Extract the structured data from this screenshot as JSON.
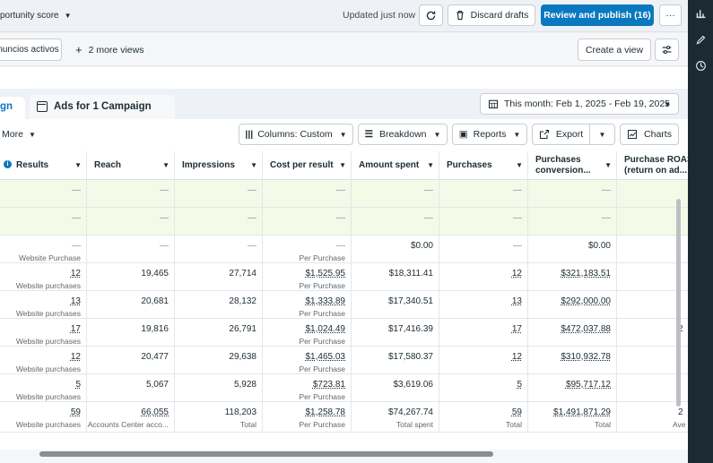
{
  "topbar": {
    "opportunity_label": "portunity score",
    "updated_text": "Updated just now",
    "discard_label": "Discard drafts",
    "publish_label": "Review and publish (16)",
    "more_label": "···"
  },
  "views": {
    "active_view_label": "nuncios activos",
    "more_views_label": "2 more views",
    "create_view_label": "Create a view"
  },
  "tabs": {
    "active_label": "gn",
    "second_label": "Ads for 1 Campaign",
    "date_range": "This month: Feb 1, 2025 - Feb 19, 2025"
  },
  "toolbar": {
    "more_label": "More",
    "columns_label": "Columns: Custom",
    "breakdown_label": "Breakdown",
    "reports_label": "Reports",
    "export_label": "Export",
    "charts_label": "Charts"
  },
  "table": {
    "headers": [
      "Results",
      "Reach",
      "Impressions",
      "Cost per result",
      "Amount spent",
      "Purchases",
      "Purchases conversion...",
      "Purchase ROAS (return on ad..."
    ],
    "headers_split": {
      "purchases_conv_1": "Purchases",
      "purchases_conv_2": "conversion...",
      "roas_1": "Purchase ROAS",
      "roas_2": "(return on ad..."
    },
    "rows": [
      {
        "cells": [
          [
            "—",
            ""
          ],
          [
            "—",
            ""
          ],
          [
            "—",
            ""
          ],
          [
            "—",
            ""
          ],
          [
            "—",
            ""
          ],
          [
            "—",
            ""
          ],
          [
            "—",
            ""
          ],
          [
            "",
            ""
          ]
        ]
      },
      {
        "cells": [
          [
            "—",
            ""
          ],
          [
            "—",
            ""
          ],
          [
            "—",
            ""
          ],
          [
            "—",
            ""
          ],
          [
            "—",
            ""
          ],
          [
            "—",
            ""
          ],
          [
            "—",
            ""
          ],
          [
            "",
            ""
          ]
        ]
      },
      {
        "cells": [
          [
            "—",
            "Website Purchase"
          ],
          [
            "—",
            ""
          ],
          [
            "—",
            ""
          ],
          [
            "—",
            "Per Purchase"
          ],
          [
            "$0.00",
            ""
          ],
          [
            "—",
            ""
          ],
          [
            "$0.00",
            ""
          ],
          [
            "",
            ""
          ]
        ]
      },
      {
        "cells": [
          [
            "12",
            "Website purchases"
          ],
          [
            "19,465",
            ""
          ],
          [
            "27,714",
            ""
          ],
          [
            "$1,525.95",
            "Per Purchase"
          ],
          [
            "$18,311.41",
            ""
          ],
          [
            "12",
            ""
          ],
          [
            "$321,183.51",
            ""
          ],
          [
            "",
            ""
          ]
        ]
      },
      {
        "cells": [
          [
            "13",
            "Website purchases"
          ],
          [
            "20,681",
            ""
          ],
          [
            "28,132",
            ""
          ],
          [
            "$1,333.89",
            "Per Purchase"
          ],
          [
            "$17,340.51",
            ""
          ],
          [
            "13",
            ""
          ],
          [
            "$292,000.00",
            ""
          ],
          [
            "",
            ""
          ]
        ]
      },
      {
        "cells": [
          [
            "17",
            "Website purchases"
          ],
          [
            "19,816",
            ""
          ],
          [
            "26,791",
            ""
          ],
          [
            "$1,024.49",
            "Per Purchase"
          ],
          [
            "$17,416.39",
            ""
          ],
          [
            "17",
            ""
          ],
          [
            "$472,037.88",
            ""
          ],
          [
            "2",
            ""
          ]
        ]
      },
      {
        "cells": [
          [
            "12",
            "Website purchases"
          ],
          [
            "20,477",
            ""
          ],
          [
            "29,638",
            ""
          ],
          [
            "$1,465.03",
            "Per Purchase"
          ],
          [
            "$17,580.37",
            ""
          ],
          [
            "12",
            ""
          ],
          [
            "$310,932.78",
            ""
          ],
          [
            "",
            ""
          ]
        ]
      },
      {
        "cells": [
          [
            "5",
            "Website purchases"
          ],
          [
            "5,067",
            ""
          ],
          [
            "5,928",
            ""
          ],
          [
            "$723.81",
            "Per Purchase"
          ],
          [
            "$3,619.06",
            ""
          ],
          [
            "5",
            ""
          ],
          [
            "$95,717.12",
            ""
          ],
          [
            "",
            ""
          ]
        ]
      },
      {
        "cells": [
          [
            "59",
            "Website purchases"
          ],
          [
            "66,055",
            "Accounts Center acco..."
          ],
          [
            "118,203",
            "Total"
          ],
          [
            "$1,258.78",
            "Per Purchase"
          ],
          [
            "$74,267.74",
            "Total spent"
          ],
          [
            "59",
            "Total"
          ],
          [
            "$1,491,871.29",
            "Total"
          ],
          [
            "2",
            "Ave"
          ]
        ]
      }
    ]
  }
}
